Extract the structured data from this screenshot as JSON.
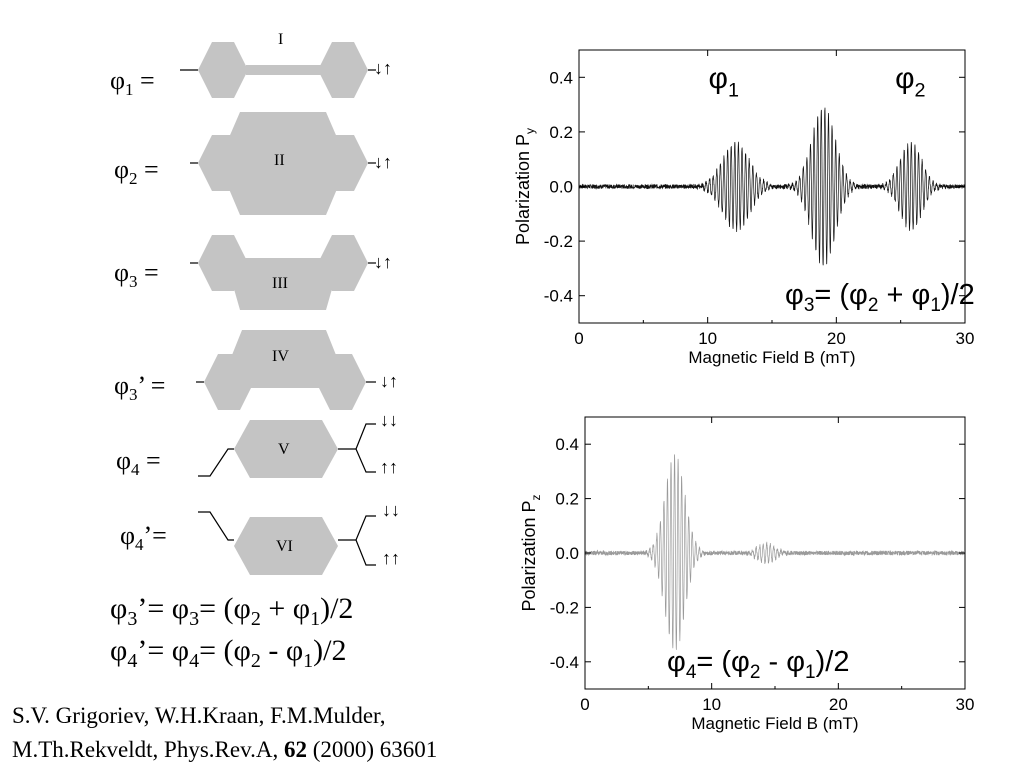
{
  "diagram": {
    "rows": [
      {
        "label": "φ",
        "sub": "1",
        "suffix": " =",
        "roman": "I",
        "arrows": "↓↑"
      },
      {
        "label": "φ",
        "sub": "2",
        "suffix": " =",
        "roman": "II",
        "arrows": "↓↑"
      },
      {
        "label": "φ",
        "sub": "3",
        "suffix": " =",
        "roman": "III",
        "arrows": "↓↑"
      },
      {
        "label": "φ",
        "sub": "3",
        "suffix": "’ =",
        "roman": "IV",
        "arrows": "↓↑"
      },
      {
        "label": "φ",
        "sub": "4",
        "suffix": " =",
        "roman": "V",
        "arrows_top": "↓↓",
        "arrows_bottom": "↑↑"
      },
      {
        "label": "φ",
        "sub": "4",
        "suffix": "’=",
        "roman": "VI",
        "arrows_top": "↓↓",
        "arrows_bottom": "↑↑"
      }
    ]
  },
  "relations": {
    "line1": {
      "a": "φ",
      "a_sub": "3",
      "a_suf": "’= ",
      "b": "φ",
      "b_sub": "3",
      "b_suf": "= (",
      "c": "φ",
      "c_sub": "2",
      "op": " + ",
      "d": "φ",
      "d_sub": "1",
      "tail": ")/2"
    },
    "line2": {
      "a": "φ",
      "a_sub": "4",
      "a_suf": "’= ",
      "b": "φ",
      "b_sub": "4",
      "b_suf": "= (",
      "c": "φ",
      "c_sub": "2",
      "op": " - ",
      "d": "φ",
      "d_sub": "1",
      "tail": ")/2"
    }
  },
  "citation": {
    "line1": "S.V. Grigoriev, W.H.Kraan, F.M.Mulder,",
    "line2_pre": "M.Th.Rekveldt, Phys.Rev.A,  ",
    "line2_bold": "62",
    "line2_post": " (2000) 63601"
  },
  "chart_data": [
    {
      "type": "line",
      "xlabel": "Magnetic Field B (mT)",
      "ylabel": "Polarization P",
      "ylabel_sub": "y",
      "xlim": [
        0,
        30
      ],
      "ylim": [
        -0.5,
        0.5
      ],
      "xticks": [
        0,
        10,
        20,
        30
      ],
      "yticks": [
        0.4,
        0.2,
        0.0,
        -0.2,
        -0.4
      ],
      "xtick_labels": [
        "0",
        "10",
        "20",
        "30"
      ],
      "ytick_labels": [
        "0.4",
        "0.2",
        "0.0",
        "-0.2",
        "-0.4"
      ],
      "line_color": "#111111",
      "annotations": [
        {
          "text": "φ",
          "sub": "1",
          "x": 11,
          "y": 0.36
        },
        {
          "text": "φ",
          "sub": "2",
          "x": 25.5,
          "y": 0.36
        }
      ],
      "formula": {
        "pre": "φ",
        "pre_sub": "3",
        "mid": "= (",
        "c": "φ",
        "c_sub": "2",
        "op": " + ",
        "d": "φ",
        "d_sub": "1",
        "tail": ")/2"
      },
      "envelope": [
        {
          "center": 12.2,
          "width": 1.5,
          "amplitude": 0.16
        },
        {
          "center": 19.0,
          "width": 1.3,
          "amplitude": 0.29
        },
        {
          "center": 25.8,
          "width": 1.2,
          "amplitude": 0.16
        }
      ],
      "noise": 0.008,
      "period": 0.28
    },
    {
      "type": "line",
      "xlabel": "Magnetic Field B (mT)",
      "ylabel": "Polarization P",
      "ylabel_sub": "z",
      "xlim": [
        0,
        30
      ],
      "ylim": [
        -0.5,
        0.5
      ],
      "xticks": [
        0,
        10,
        20,
        30
      ],
      "yticks": [
        0.4,
        0.2,
        0.0,
        -0.2,
        -0.4
      ],
      "xtick_labels": [
        "0",
        "10",
        "20",
        "30"
      ],
      "ytick_labels": [
        "0.4",
        "0.2",
        "0.0",
        "-0.2",
        "-0.4"
      ],
      "line_color": "#9a9a9a",
      "annotations": [],
      "formula": {
        "pre": "φ",
        "pre_sub": "4",
        "mid": "= (",
        "c": "φ",
        "c_sub": "2",
        "op": " - ",
        "d": "φ",
        "d_sub": "1",
        "tail": ")/2"
      },
      "envelope": [
        {
          "center": 7.1,
          "width": 1.1,
          "amplitude": 0.36
        },
        {
          "center": 14.3,
          "width": 1.0,
          "amplitude": 0.035
        }
      ],
      "noise": 0.008,
      "period": 0.28
    }
  ]
}
